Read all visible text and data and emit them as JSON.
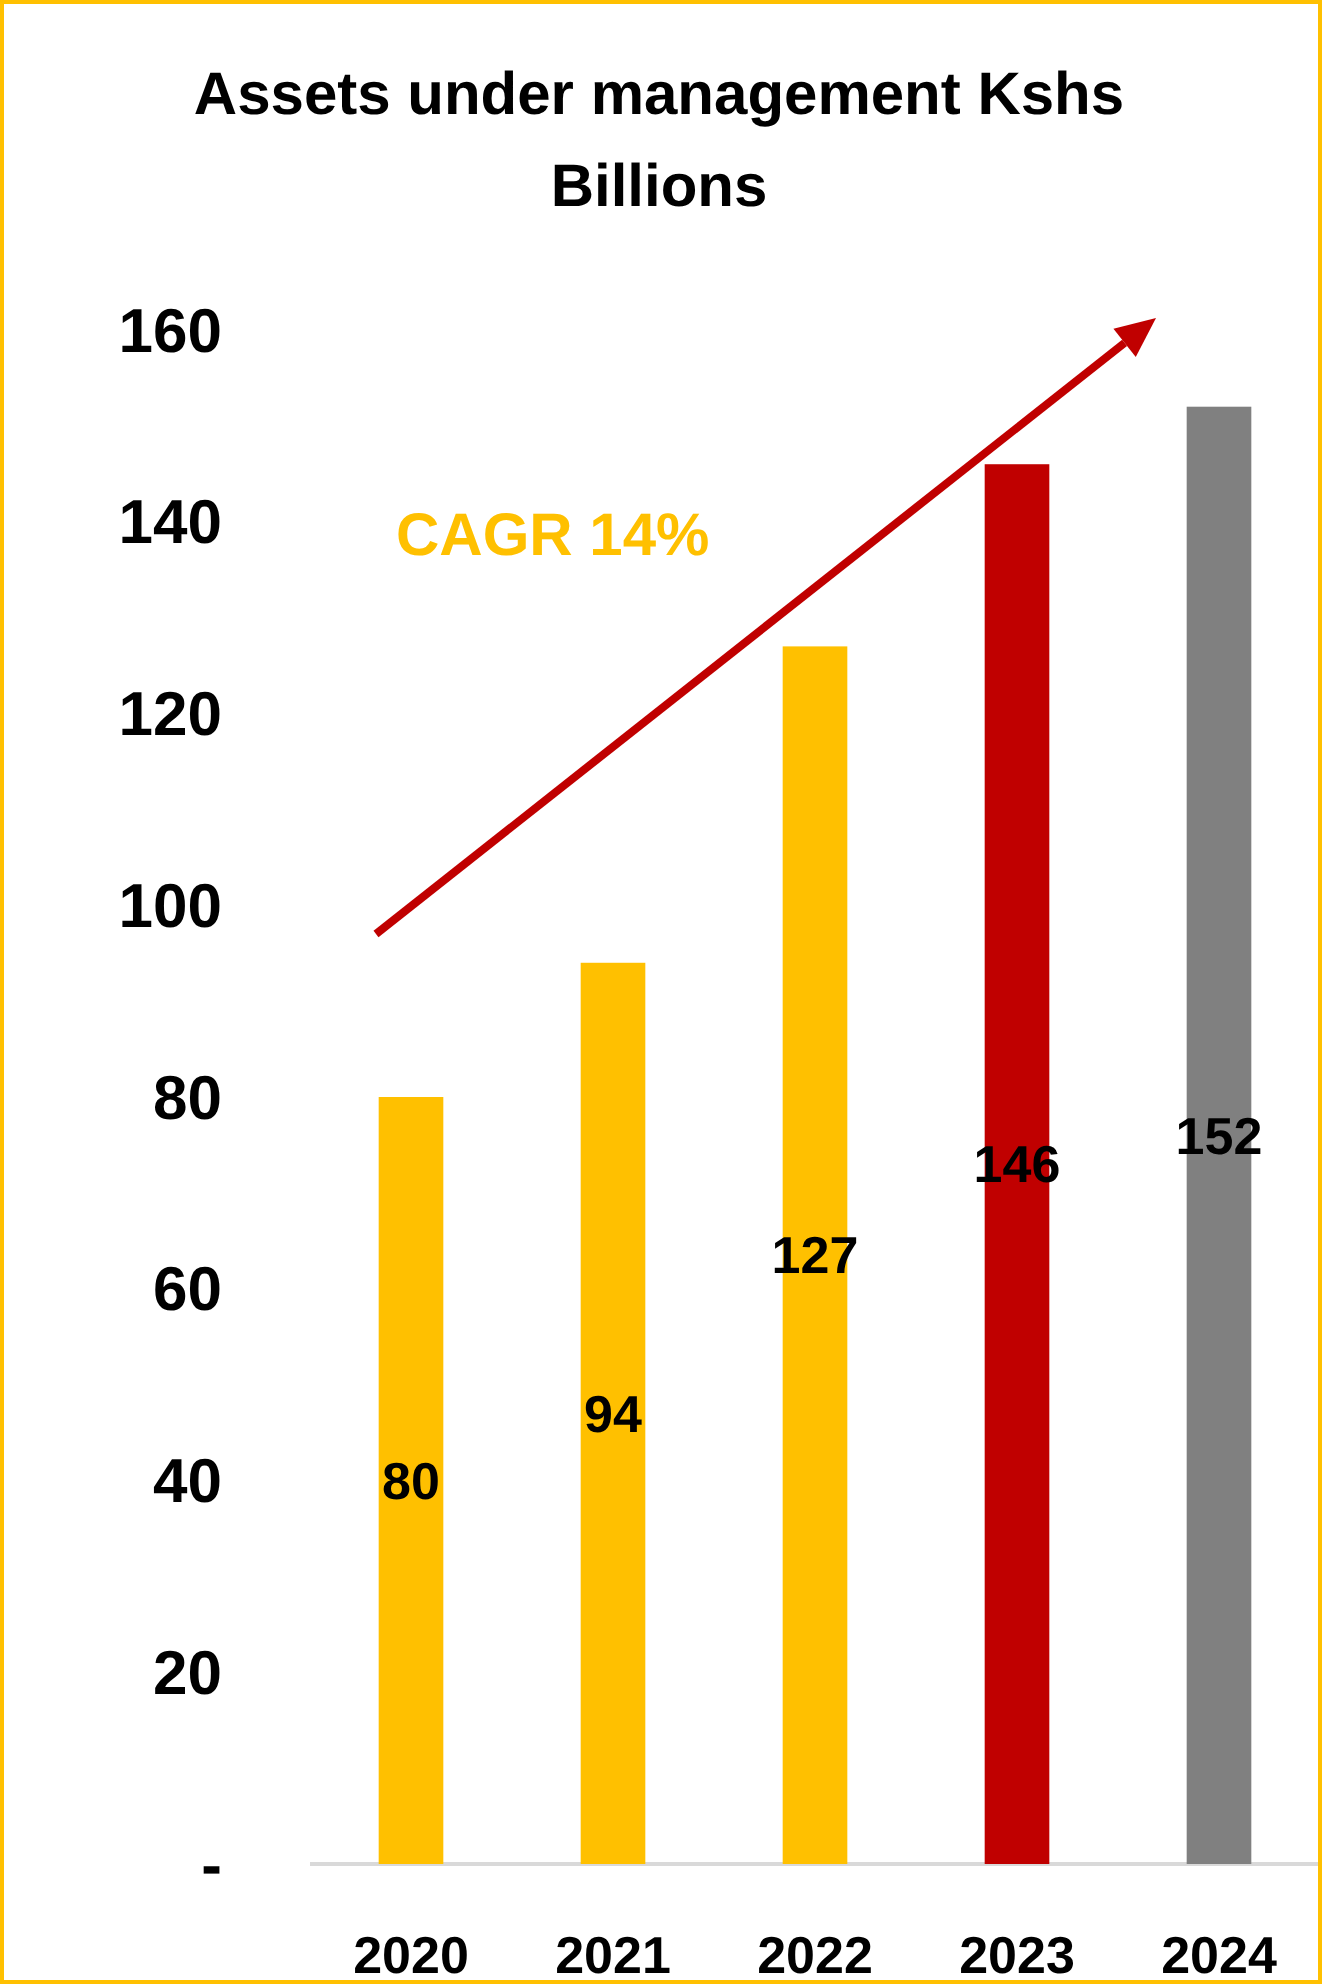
{
  "chart_data": {
    "type": "bar",
    "title": "Assets under management Kshs Billions",
    "categories": [
      "2020",
      "2021",
      "2022",
      "2023",
      "2024"
    ],
    "values": [
      80,
      94,
      127,
      146,
      152
    ],
    "colors": [
      "#ffc000",
      "#ffc000",
      "#ffc000",
      "#c00000",
      "#808080"
    ],
    "ylim": [
      0,
      160
    ],
    "yticks": [
      {
        "value": 0,
        "label": "-"
      },
      20,
      40,
      60,
      80,
      100,
      120,
      140,
      160
    ],
    "data_labels": true,
    "annotations": [
      "CAGR 14%"
    ]
  }
}
